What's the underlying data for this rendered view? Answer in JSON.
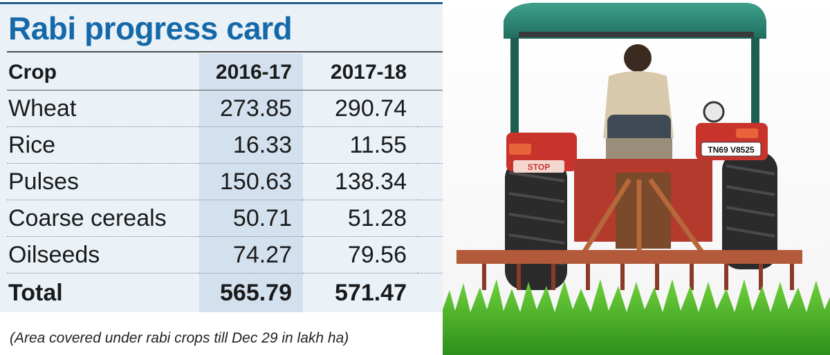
{
  "title": "Rabi progress card",
  "header": {
    "crop": "Crop",
    "year1": "2016-17",
    "year2": "2017-18"
  },
  "rows": [
    {
      "crop": "Wheat",
      "v1": "273.85",
      "v2": "290.74"
    },
    {
      "crop": "Rice",
      "v1": "16.33",
      "v2": "11.55"
    },
    {
      "crop": "Pulses",
      "v1": "150.63",
      "v2": "138.34"
    },
    {
      "crop": "Coarse cereals",
      "v1": "50.71",
      "v2": "51.28"
    },
    {
      "crop": "Oilseeds",
      "v1": "74.27",
      "v2": "79.56"
    }
  ],
  "total": {
    "label": "Total",
    "v1": "565.79",
    "v2": "571.47"
  },
  "note": "(Area covered under rabi crops till Dec 29 in lakh ha)",
  "photo": {
    "plate": "TN69 V8525",
    "stop": "STOP"
  },
  "colors": {
    "title": "#1669a8",
    "panel": "#eaf2f8",
    "band": "#d3e1ee",
    "rule": "#1e5d8f"
  },
  "chart_data": {
    "type": "table",
    "title": "Rabi progress card",
    "columns": [
      "Crop",
      "2016-17",
      "2017-18"
    ],
    "rows": [
      [
        "Wheat",
        273.85,
        290.74
      ],
      [
        "Rice",
        16.33,
        11.55
      ],
      [
        "Pulses",
        150.63,
        138.34
      ],
      [
        "Coarse cereals",
        50.71,
        51.28
      ],
      [
        "Oilseeds",
        74.27,
        79.56
      ],
      [
        "Total",
        565.79,
        571.47
      ]
    ],
    "note": "(Area covered under rabi crops till Dec 29 in lakh ha)"
  }
}
